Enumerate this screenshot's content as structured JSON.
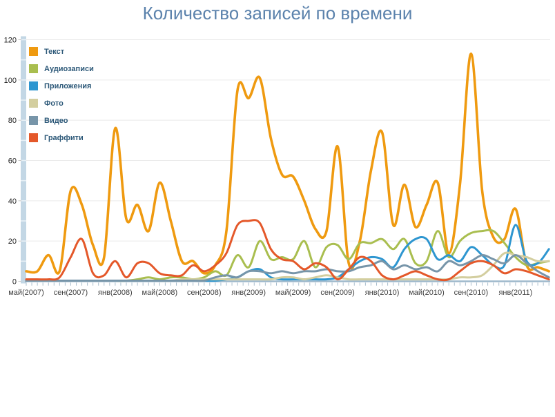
{
  "title": "Количество записей по времени",
  "colors": {
    "title_text": "#5B82AC",
    "legend_text": "#2C5878",
    "axis_band": "#C3D7E5",
    "axis_band_notch": "#E7F0F6",
    "axis_line": "#9DB8CB",
    "tick": "#A9BECE",
    "grid": "#EAEAEA",
    "y_label": "#1F1F1F",
    "x_label": "#3D3D3D",
    "background": "#FFFFFF"
  },
  "legend": [
    {
      "label": "Текст",
      "color": "#EF9A10"
    },
    {
      "label": "Аудиозаписи",
      "color": "#A9BE4F"
    },
    {
      "label": "Приложения",
      "color": "#2E96D0"
    },
    {
      "label": "Фото",
      "color": "#D3CE9F"
    },
    {
      "label": "Видео",
      "color": "#7795A9"
    },
    {
      "label": "Граффити",
      "color": "#E4582A"
    }
  ],
  "chart_data": {
    "type": "line",
    "title": "Количество записей по времени",
    "x_unit": "месяц",
    "x_range": [
      "май 2007",
      "апрель 2011"
    ],
    "points_per_series": 48,
    "x_tick_labels": [
      "май(2007)",
      "сен(2007)",
      "янв(2008)",
      "май(2008)",
      "сен(2008)",
      "янв(2009)",
      "май(2009)",
      "сен(2009)",
      "янв(2010)",
      "май(2010)",
      "сен(2010)",
      "янв(2011)"
    ],
    "x_tick_month_index": [
      0,
      4,
      8,
      12,
      16,
      20,
      24,
      28,
      32,
      36,
      40,
      44
    ],
    "y_ticks": [
      0,
      20,
      40,
      60,
      80,
      100,
      120
    ],
    "ylim": [
      0,
      120
    ],
    "grid": "horizontal",
    "legend_position": "top-left-inside",
    "series": [
      {
        "name": "Текст",
        "color": "#EF9A10",
        "values": [
          5,
          5,
          13,
          5,
          45,
          38,
          18,
          12,
          76,
          31,
          38,
          25,
          49,
          30,
          10,
          10,
          4,
          8,
          25,
          95,
          91,
          101,
          71,
          53,
          52,
          40,
          26,
          25,
          67,
          9,
          20,
          55,
          74,
          28,
          48,
          27,
          38,
          49,
          14,
          48,
          113,
          45,
          22,
          21,
          36,
          8,
          7,
          5
        ]
      },
      {
        "name": "Аудиозаписи",
        "color": "#A9BE4F",
        "values": [
          0,
          0,
          0,
          0,
          0,
          0,
          0,
          0,
          0,
          0,
          1,
          2,
          1,
          2,
          2,
          1,
          2,
          5,
          3,
          13,
          7,
          20,
          11,
          12,
          11,
          20,
          7,
          17,
          18,
          11,
          19,
          19,
          21,
          16,
          21,
          9,
          10,
          25,
          12,
          20,
          24,
          25,
          25,
          19,
          12,
          8,
          9,
          10
        ]
      },
      {
        "name": "Приложения",
        "color": "#2E96D0",
        "values": [
          0,
          0,
          0,
          0,
          0,
          0,
          0,
          0,
          0,
          0,
          0,
          0,
          0,
          0,
          0,
          0,
          0,
          0,
          1,
          2,
          5,
          6,
          2,
          1,
          1,
          1,
          1,
          1,
          2,
          6,
          10,
          12,
          11,
          7,
          16,
          21,
          21,
          11,
          13,
          10,
          17,
          13,
          8,
          8,
          28,
          10,
          9,
          16
        ]
      },
      {
        "name": "Фото",
        "color": "#D3CE9F",
        "values": [
          0,
          0,
          0,
          0,
          0,
          0,
          0,
          0,
          0,
          0,
          0,
          0,
          0,
          0,
          1,
          1,
          1,
          1,
          1,
          1,
          1,
          1,
          1,
          2,
          2,
          1,
          2,
          3,
          2,
          1,
          1,
          1,
          1,
          1,
          1,
          1,
          1,
          1,
          1,
          2,
          2,
          3,
          8,
          14,
          13,
          12,
          10,
          10
        ]
      },
      {
        "name": "Видео",
        "color": "#7795A9",
        "values": [
          0,
          0,
          0,
          0,
          0,
          0,
          0,
          0,
          0,
          0,
          0,
          0,
          0,
          0,
          0,
          0,
          0,
          2,
          3,
          2,
          5,
          5,
          4,
          5,
          4,
          5,
          5,
          6,
          5,
          5,
          7,
          8,
          10,
          6,
          8,
          6,
          7,
          5,
          10,
          8,
          10,
          13,
          11,
          9,
          13,
          9,
          5,
          2
        ]
      },
      {
        "name": "Граффити",
        "color": "#E4582A",
        "values": [
          1,
          1,
          1,
          2,
          12,
          21,
          4,
          3,
          10,
          2,
          9,
          9,
          4,
          3,
          3,
          8,
          5,
          8,
          14,
          28,
          30,
          29,
          16,
          11,
          10,
          6,
          9,
          7,
          1,
          6,
          12,
          10,
          3,
          1,
          3,
          5,
          3,
          1,
          1,
          5,
          9,
          10,
          8,
          4,
          6,
          5,
          3,
          1
        ]
      }
    ]
  }
}
